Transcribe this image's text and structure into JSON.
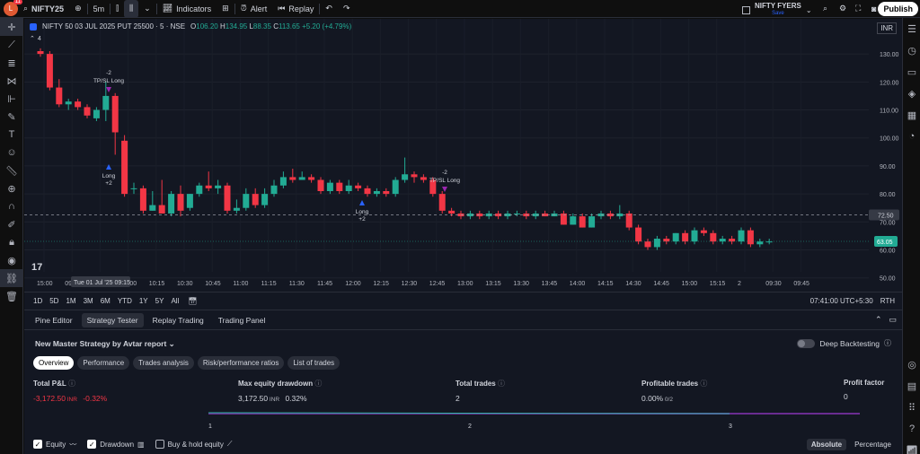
{
  "topbar": {
    "avatar_letter": "L",
    "notification_count": "11",
    "symbol": "NIFTY25",
    "interval": "5m",
    "indicators_label": "Indicators",
    "alert_label": "Alert",
    "replay_label": "Replay",
    "broker_name": "NIFTY FYERS",
    "broker_sub": "Save",
    "publish_label": "Publish"
  },
  "chart": {
    "title": "NIFTY 50 03 JUL 2025 PUT 25500 · 5 · NSE",
    "ohlc": {
      "o": "106.20",
      "h": "134.95",
      "l": "88.35",
      "c": "113.65",
      "change": "+5.20 (+4.79%)"
    },
    "currency": "INR",
    "hidden_count": "4",
    "price_labels": [
      "130.00",
      "120.00",
      "110.00",
      "100.00",
      "90.00",
      "80.00",
      "70.00",
      "60.00",
      "50.00"
    ],
    "crosshair_price": "72.50",
    "last_price": "63.05",
    "time_labels": [
      "15:00",
      "09:30",
      "09:45",
      "10:00",
      "10:15",
      "10:30",
      "10:45",
      "11:00",
      "11:15",
      "11:30",
      "11:45",
      "12:00",
      "12:15",
      "12:30",
      "12:45",
      "13:00",
      "13:15",
      "13:30",
      "13:45",
      "14:00",
      "14:15",
      "14:30",
      "14:45",
      "15:00",
      "15:15",
      "2",
      "09:30",
      "09:45"
    ],
    "crosshair_time": "Tue 01 Jul '25  09:15",
    "trade_marks": [
      {
        "count": "-2",
        "label": "TP/SL Long"
      },
      {
        "count": "Long",
        "label": "+2"
      },
      {
        "count": "-2",
        "label": "TP/SL Long"
      },
      {
        "count": "Long",
        "label": "+2"
      }
    ],
    "logo_text": "17"
  },
  "datebar": {
    "ranges": [
      "1D",
      "5D",
      "1M",
      "3M",
      "6M",
      "YTD",
      "1Y",
      "5Y",
      "All"
    ],
    "clock": "07:41:00 UTC+5:30",
    "session": "RTH"
  },
  "panel": {
    "tabs": [
      "Pine Editor",
      "Strategy Tester",
      "Replay Trading",
      "Trading Panel"
    ],
    "active_tab": "Strategy Tester",
    "strategy_name": "New Master Strategy by Avtar report",
    "deep_backtesting": "Deep Backtesting",
    "subtabs": [
      "Overview",
      "Performance",
      "Trades analysis",
      "Risk/performance ratios",
      "List of trades"
    ],
    "metrics": [
      {
        "label": "Total P&L",
        "value": "-3,172.50",
        "unit": "INR",
        "pct": "-0.32%"
      },
      {
        "label": "Max equity drawdown",
        "value": "3,172.50",
        "unit": "INR",
        "pct": "0.32%"
      },
      {
        "label": "Total trades",
        "value": "2",
        "unit": "",
        "pct": ""
      },
      {
        "label": "Profitable trades",
        "value": "0.00%",
        "unit": "0/2",
        "pct": ""
      },
      {
        "label": "Profit factor",
        "value": "0",
        "unit": "",
        "pct": ""
      }
    ],
    "equity_axis": [
      "1",
      "2",
      "3"
    ],
    "bottom": {
      "equity": "Equity",
      "drawdown": "Drawdown",
      "buyhold": "Buy & hold equity",
      "absolute": "Absolute",
      "percentage": "Percentage"
    }
  },
  "colors": {
    "up": "#22ab94",
    "down": "#f23645",
    "bg": "#131722"
  }
}
